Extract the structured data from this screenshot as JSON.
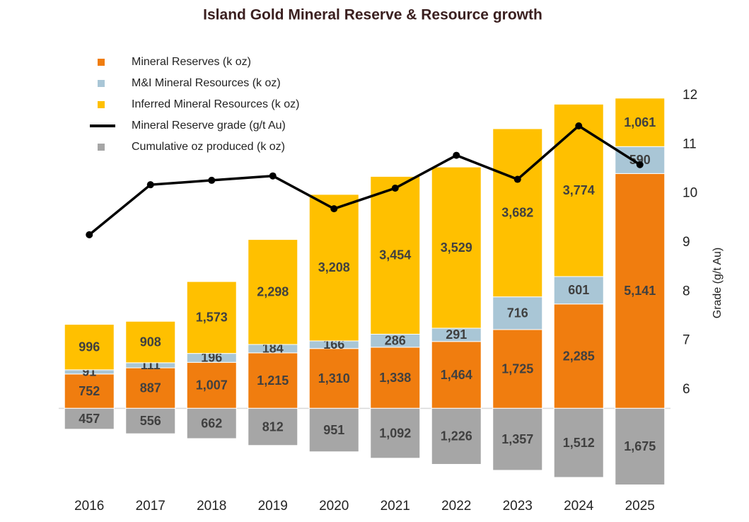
{
  "chart_data": {
    "type": "bar",
    "stacked": true,
    "title": "Island Gold Mineral Reserve & Resource growth",
    "categories": [
      "2016",
      "2017",
      "2018",
      "2019",
      "2020",
      "2021",
      "2022",
      "2023",
      "2024",
      "2025"
    ],
    "series": [
      {
        "name": "Mineral Reserves (k oz)",
        "color": "#f07d0f",
        "values": [
          752,
          887,
          1007,
          1215,
          1310,
          1338,
          1464,
          1725,
          2285,
          5141
        ],
        "value_labels": [
          "752",
          "887",
          "1,007",
          "1,215",
          "1,310",
          "1,338",
          "1,464",
          "1,725",
          "2,285",
          "5,141"
        ]
      },
      {
        "name": "M&I Mineral Resources (k oz)",
        "color": "#a9c6d6",
        "values": [
          91,
          111,
          196,
          184,
          166,
          286,
          291,
          716,
          601,
          590
        ],
        "value_labels": [
          "91",
          "111",
          "196",
          "184",
          "166",
          "286",
          "291",
          "716",
          "601",
          "590"
        ]
      },
      {
        "name": "Inferred Mineral Resources (k oz)",
        "color": "#ffc000",
        "values": [
          996,
          908,
          1573,
          2298,
          3208,
          3454,
          3529,
          3682,
          3774,
          1061
        ],
        "value_labels": [
          "996",
          "908",
          "1,573",
          "2,298",
          "3,208",
          "3,454",
          "3,529",
          "3,682",
          "3,774",
          "1,061"
        ]
      },
      {
        "name": "Mineral Reserve grade (g/t Au)",
        "color": "#000000",
        "type": "line",
        "axis": "y2",
        "values": [
          9.16,
          10.18,
          10.27,
          10.36,
          9.69,
          10.11,
          10.78,
          10.29,
          11.38,
          10.59
        ]
      },
      {
        "name": "Cumulative oz produced (k oz)",
        "color": "#a6a6a6",
        "below_axis": true,
        "values": [
          457,
          556,
          662,
          812,
          951,
          1092,
          1226,
          1357,
          1512,
          1675
        ],
        "value_labels": [
          "457",
          "556",
          "662",
          "812",
          "951",
          "1,092",
          "1,226",
          "1,357",
          "1,512",
          "1,675"
        ]
      }
    ],
    "ylim": [
      -1900,
      6850
    ],
    "y2lim": [
      3.85,
      12
    ],
    "y2ticks": [
      6,
      7,
      8,
      9,
      10,
      11,
      12
    ],
    "y2label": "Grade (g/t Au)"
  }
}
